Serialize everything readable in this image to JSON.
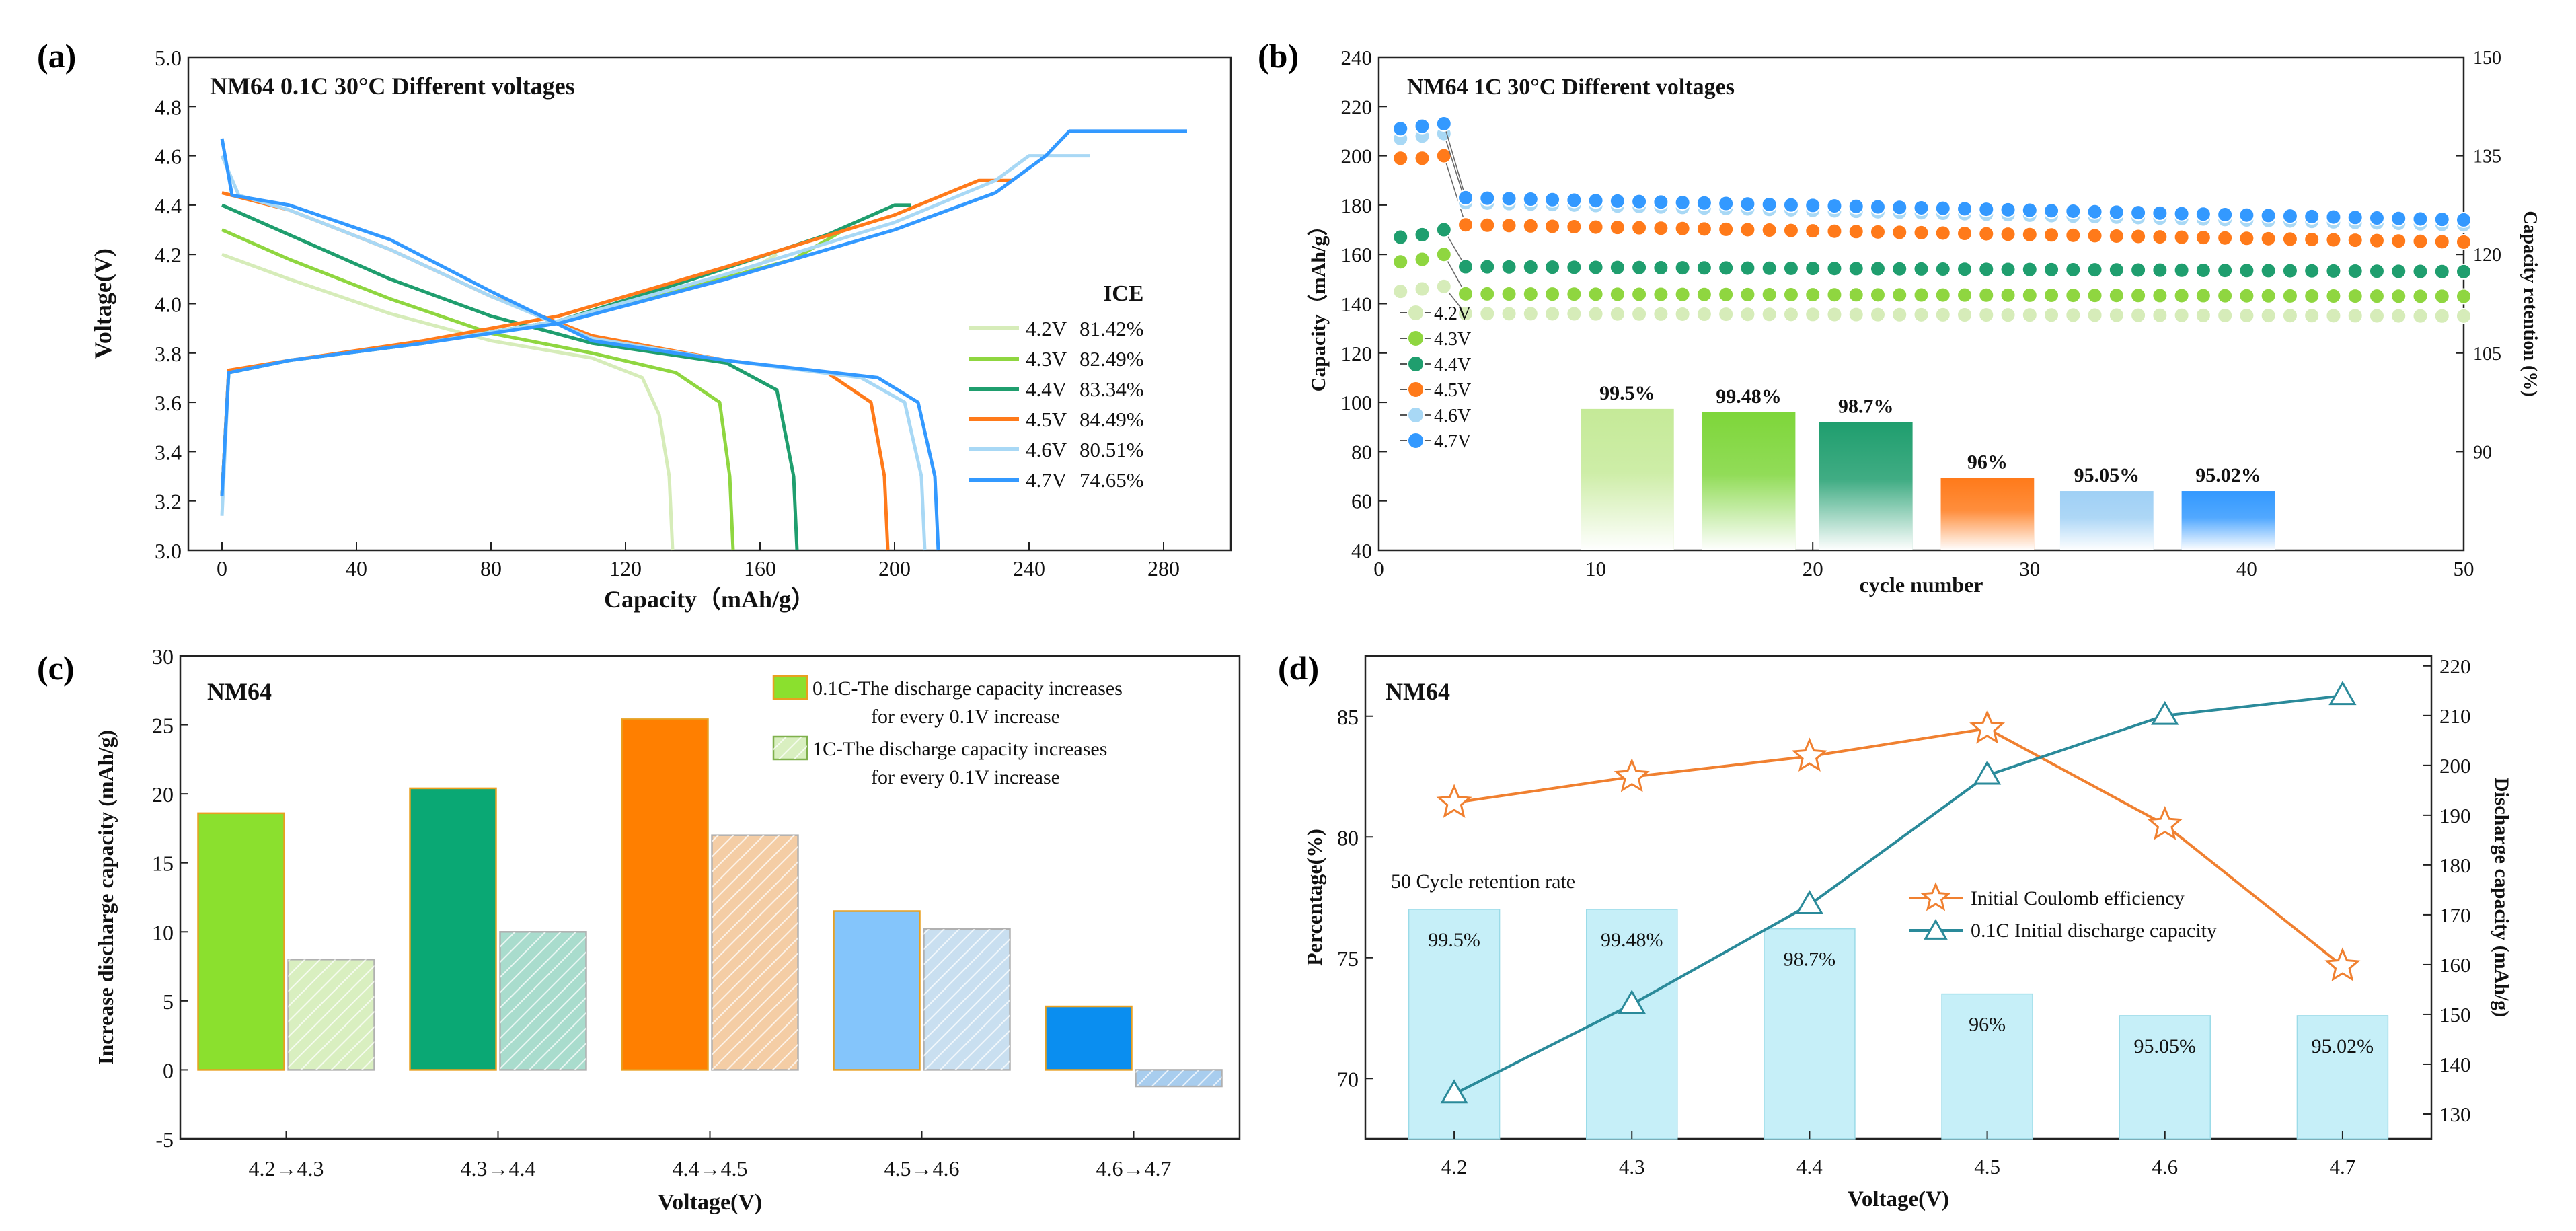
{
  "chart_data": [
    {
      "panel": "(a)",
      "type": "line",
      "title": "NM64   0.1C   30°C   Different voltages",
      "xlabel": "Capacity（mAh/g）",
      "ylabel": "Voltage(V)",
      "xlim": [
        -10,
        300
      ],
      "ylim": [
        3.0,
        5.0
      ],
      "xticks": [
        0,
        40,
        80,
        120,
        160,
        200,
        240,
        280
      ],
      "yticks": [
        3.0,
        3.2,
        3.4,
        3.6,
        3.8,
        4.0,
        4.2,
        4.4,
        4.6,
        4.8,
        5.0
      ],
      "legend_title": "ICE",
      "series": [
        {
          "name": "4.2V",
          "ice": "81.42%",
          "color": "#d6ecb9",
          "charge": [
            [
              0,
              3.22
            ],
            [
              2,
              3.72
            ],
            [
              20,
              3.77
            ],
            [
              60,
              3.84
            ],
            [
              100,
              3.93
            ],
            [
              130,
              4.03
            ],
            [
              155,
              4.12
            ],
            [
              165,
              4.2
            ]
          ],
          "discharge": [
            [
              0,
              4.2
            ],
            [
              20,
              4.1
            ],
            [
              50,
              3.96
            ],
            [
              80,
              3.85
            ],
            [
              110,
              3.78
            ],
            [
              125,
              3.7
            ],
            [
              130,
              3.55
            ],
            [
              133,
              3.3
            ],
            [
              134,
              3.0
            ]
          ]
        },
        {
          "name": "4.3V",
          "ice": "82.49%",
          "color": "#8fd640",
          "charge": [
            [
              0,
              3.22
            ],
            [
              2,
              3.72
            ],
            [
              20,
              3.77
            ],
            [
              60,
              3.84
            ],
            [
              100,
              3.93
            ],
            [
              140,
              4.07
            ],
            [
              170,
              4.18
            ],
            [
              185,
              4.3
            ]
          ],
          "discharge": [
            [
              0,
              4.3
            ],
            [
              20,
              4.18
            ],
            [
              50,
              4.02
            ],
            [
              80,
              3.88
            ],
            [
              110,
              3.8
            ],
            [
              135,
              3.72
            ],
            [
              148,
              3.6
            ],
            [
              151,
              3.3
            ],
            [
              152,
              3.0
            ]
          ]
        },
        {
          "name": "4.4V",
          "ice": "83.34%",
          "color": "#1f9e6e",
          "charge": [
            [
              0,
              3.22
            ],
            [
              2,
              3.72
            ],
            [
              20,
              3.77
            ],
            [
              60,
              3.84
            ],
            [
              100,
              3.93
            ],
            [
              140,
              4.1
            ],
            [
              180,
              4.28
            ],
            [
              200,
              4.4
            ],
            [
              205,
              4.4
            ]
          ],
          "discharge": [
            [
              0,
              4.4
            ],
            [
              20,
              4.28
            ],
            [
              50,
              4.1
            ],
            [
              80,
              3.95
            ],
            [
              110,
              3.84
            ],
            [
              150,
              3.76
            ],
            [
              165,
              3.65
            ],
            [
              170,
              3.3
            ],
            [
              171,
              3.0
            ]
          ]
        },
        {
          "name": "4.5V",
          "ice": "84.49%",
          "color": "#ff7a1a",
          "charge": [
            [
              0,
              3.22
            ],
            [
              2,
              3.73
            ],
            [
              20,
              3.77
            ],
            [
              60,
              3.85
            ],
            [
              100,
              3.95
            ],
            [
              150,
              4.15
            ],
            [
              200,
              4.36
            ],
            [
              225,
              4.5
            ],
            [
              235,
              4.5
            ]
          ],
          "discharge": [
            [
              0,
              4.45
            ],
            [
              20,
              4.38
            ],
            [
              50,
              4.22
            ],
            [
              80,
              4.03
            ],
            [
              110,
              3.87
            ],
            [
              150,
              3.77
            ],
            [
              180,
              3.72
            ],
            [
              193,
              3.6
            ],
            [
              197,
              3.3
            ],
            [
              198,
              3.0
            ]
          ]
        },
        {
          "name": "4.6V",
          "ice": "80.51%",
          "color": "#a8d8f5",
          "charge": [
            [
              0,
              3.14
            ],
            [
              2,
              3.72
            ],
            [
              20,
              3.77
            ],
            [
              60,
              3.84
            ],
            [
              100,
              3.93
            ],
            [
              150,
              4.12
            ],
            [
              200,
              4.33
            ],
            [
              230,
              4.5
            ],
            [
              240,
              4.6
            ],
            [
              258,
              4.6
            ]
          ],
          "discharge": [
            [
              0,
              4.6
            ],
            [
              5,
              4.44
            ],
            [
              20,
              4.38
            ],
            [
              50,
              4.22
            ],
            [
              80,
              4.03
            ],
            [
              110,
              3.86
            ],
            [
              150,
              3.77
            ],
            [
              190,
              3.7
            ],
            [
              203,
              3.6
            ],
            [
              208,
              3.3
            ],
            [
              209,
              3.0
            ]
          ]
        },
        {
          "name": "4.7V",
          "ice": "74.65%",
          "color": "#3399ff",
          "charge": [
            [
              0,
              3.22
            ],
            [
              2,
              3.72
            ],
            [
              20,
              3.77
            ],
            [
              60,
              3.84
            ],
            [
              100,
              3.92
            ],
            [
              150,
              4.1
            ],
            [
              200,
              4.3
            ],
            [
              230,
              4.45
            ],
            [
              245,
              4.6
            ],
            [
              252,
              4.7
            ],
            [
              287,
              4.7
            ]
          ],
          "discharge": [
            [
              0,
              4.67
            ],
            [
              3,
              4.44
            ],
            [
              20,
              4.4
            ],
            [
              50,
              4.26
            ],
            [
              80,
              4.05
            ],
            [
              110,
              3.85
            ],
            [
              150,
              3.77
            ],
            [
              195,
              3.7
            ],
            [
              207,
              3.6
            ],
            [
              212,
              3.3
            ],
            [
              213,
              3.0
            ]
          ]
        }
      ]
    },
    {
      "panel": "(b)",
      "type": "scatter",
      "title": "NM64 1C 30°C Different voltages",
      "xlabel": "cycle number",
      "ylabel": "Capacity（mAh/g）",
      "y2label": "Capacity retention (%)",
      "xlim": [
        0,
        50
      ],
      "ylim": [
        40,
        240
      ],
      "y2lim": [
        75,
        150
      ],
      "xticks": [
        0,
        10,
        20,
        30,
        40,
        50
      ],
      "yticks": [
        40,
        60,
        80,
        100,
        120,
        140,
        160,
        180,
        200,
        220,
        240
      ],
      "y2ticks": [
        90,
        105,
        120,
        135,
        150
      ],
      "series": [
        {
          "name": "4.2V",
          "color": "#d6ecb9",
          "first": [
            145,
            146,
            147
          ],
          "start": 136,
          "end": 135
        },
        {
          "name": "4.3V",
          "color": "#8fd640",
          "first": [
            157,
            158,
            160
          ],
          "start": 144,
          "end": 143
        },
        {
          "name": "4.4V",
          "color": "#1f9e6e",
          "first": [
            167,
            168,
            170
          ],
          "start": 155,
          "end": 153
        },
        {
          "name": "4.5V",
          "color": "#ff7a1a",
          "first": [
            199,
            199,
            200
          ],
          "start": 172,
          "end": 165
        },
        {
          "name": "4.6V",
          "color": "#a8d8f5",
          "first": [
            207,
            208,
            209
          ],
          "start": 181,
          "end": 172
        },
        {
          "name": "4.7V",
          "color": "#3399ff",
          "first": [
            211,
            212,
            213
          ],
          "start": 183,
          "end": 174
        }
      ],
      "retention_bars": [
        {
          "label": "99.5%",
          "x0": 9.3,
          "x1": 13.6,
          "value": 96.5,
          "color": "#c5ea98"
        },
        {
          "label": "99.48%",
          "x0": 14.9,
          "x1": 19.2,
          "value": 96,
          "color": "#7ed63a"
        },
        {
          "label": "98.7%",
          "x0": 20.3,
          "x1": 24.6,
          "value": 94.5,
          "color": "#1f9e6e"
        },
        {
          "label": "96%",
          "x0": 25.9,
          "x1": 30.2,
          "value": 86,
          "color": "#ff7a1a"
        },
        {
          "label": "95.05%",
          "x0": 31.4,
          "x1": 35.7,
          "value": 84,
          "color": "#9fd0f5"
        },
        {
          "label": "95.02%",
          "x0": 37,
          "x1": 41.3,
          "value": 84,
          "color": "#3399ff"
        }
      ]
    },
    {
      "panel": "(c)",
      "type": "bar",
      "title": "NM64",
      "xlabel": "Voltage(V)",
      "ylabel": "Increase discharge capacity (mAh/g)",
      "categories": [
        "4.2→4.3",
        "4.3→4.4",
        "4.4→4.5",
        "4.5→4.6",
        "4.6→4.7"
      ],
      "ylim": [
        -5,
        30
      ],
      "yticks": [
        -5,
        0,
        5,
        10,
        15,
        20,
        25,
        30
      ],
      "series": [
        {
          "name": "0.1C-The discharge capacity increases for every 0.1V increase",
          "legend_lines": [
            "0.1C-The discharge capacity increases",
            "for every 0.1V increase"
          ],
          "values": [
            18.6,
            20.4,
            25.4,
            11.5,
            4.6
          ],
          "colors": [
            "#8be02e",
            "#0aa874",
            "#ff7f00",
            "#84c5fb",
            "#0a8ef0"
          ]
        },
        {
          "name": "1C-The discharge capacity increases for every 0.1V increase",
          "legend_lines": [
            "1C-The discharge capacity increases",
            "for every 0.1V increase"
          ],
          "values": [
            8.0,
            10.0,
            17.0,
            10.2,
            -1.2
          ],
          "colors": [
            "#d9efc0",
            "#a9dccd",
            "#f4cda5",
            "#c9dff0",
            "#a8cdee"
          ]
        }
      ]
    },
    {
      "panel": "(d)",
      "type": "line",
      "title": "NM64",
      "xlabel": "Voltage(V)",
      "ylabel": "Percentage(%)",
      "y2label": "Discharge capacity (mAh/g)",
      "categories": [
        "4.2",
        "4.3",
        "4.4",
        "4.5",
        "4.6",
        "4.7"
      ],
      "ylim": [
        67.5,
        87.5
      ],
      "yticks": [
        70,
        75,
        80,
        85
      ],
      "y2lim": [
        125,
        222
      ],
      "y2ticks": [
        130,
        140,
        150,
        160,
        170,
        180,
        190,
        200,
        210,
        220
      ],
      "bar_label": "50 Cycle retention rate",
      "bars": {
        "values": [
          77,
          77,
          76.2,
          73.5,
          72.6,
          72.6
        ],
        "labels": [
          "99.5%",
          "99.48%",
          "98.7%",
          "96%",
          "95.05%",
          "95.02%"
        ],
        "color": "#c6eff8"
      },
      "series": [
        {
          "name": "Initial Coulomb efficiency",
          "axis": "left",
          "color": "#f08030",
          "values": [
            81.42,
            82.49,
            83.34,
            84.49,
            80.51,
            74.65
          ]
        },
        {
          "name": "0.1C Initial discharge capacity",
          "axis": "right",
          "color": "#2a8a9a",
          "values": [
            134,
            152,
            172,
            198,
            210,
            214
          ]
        }
      ]
    }
  ]
}
